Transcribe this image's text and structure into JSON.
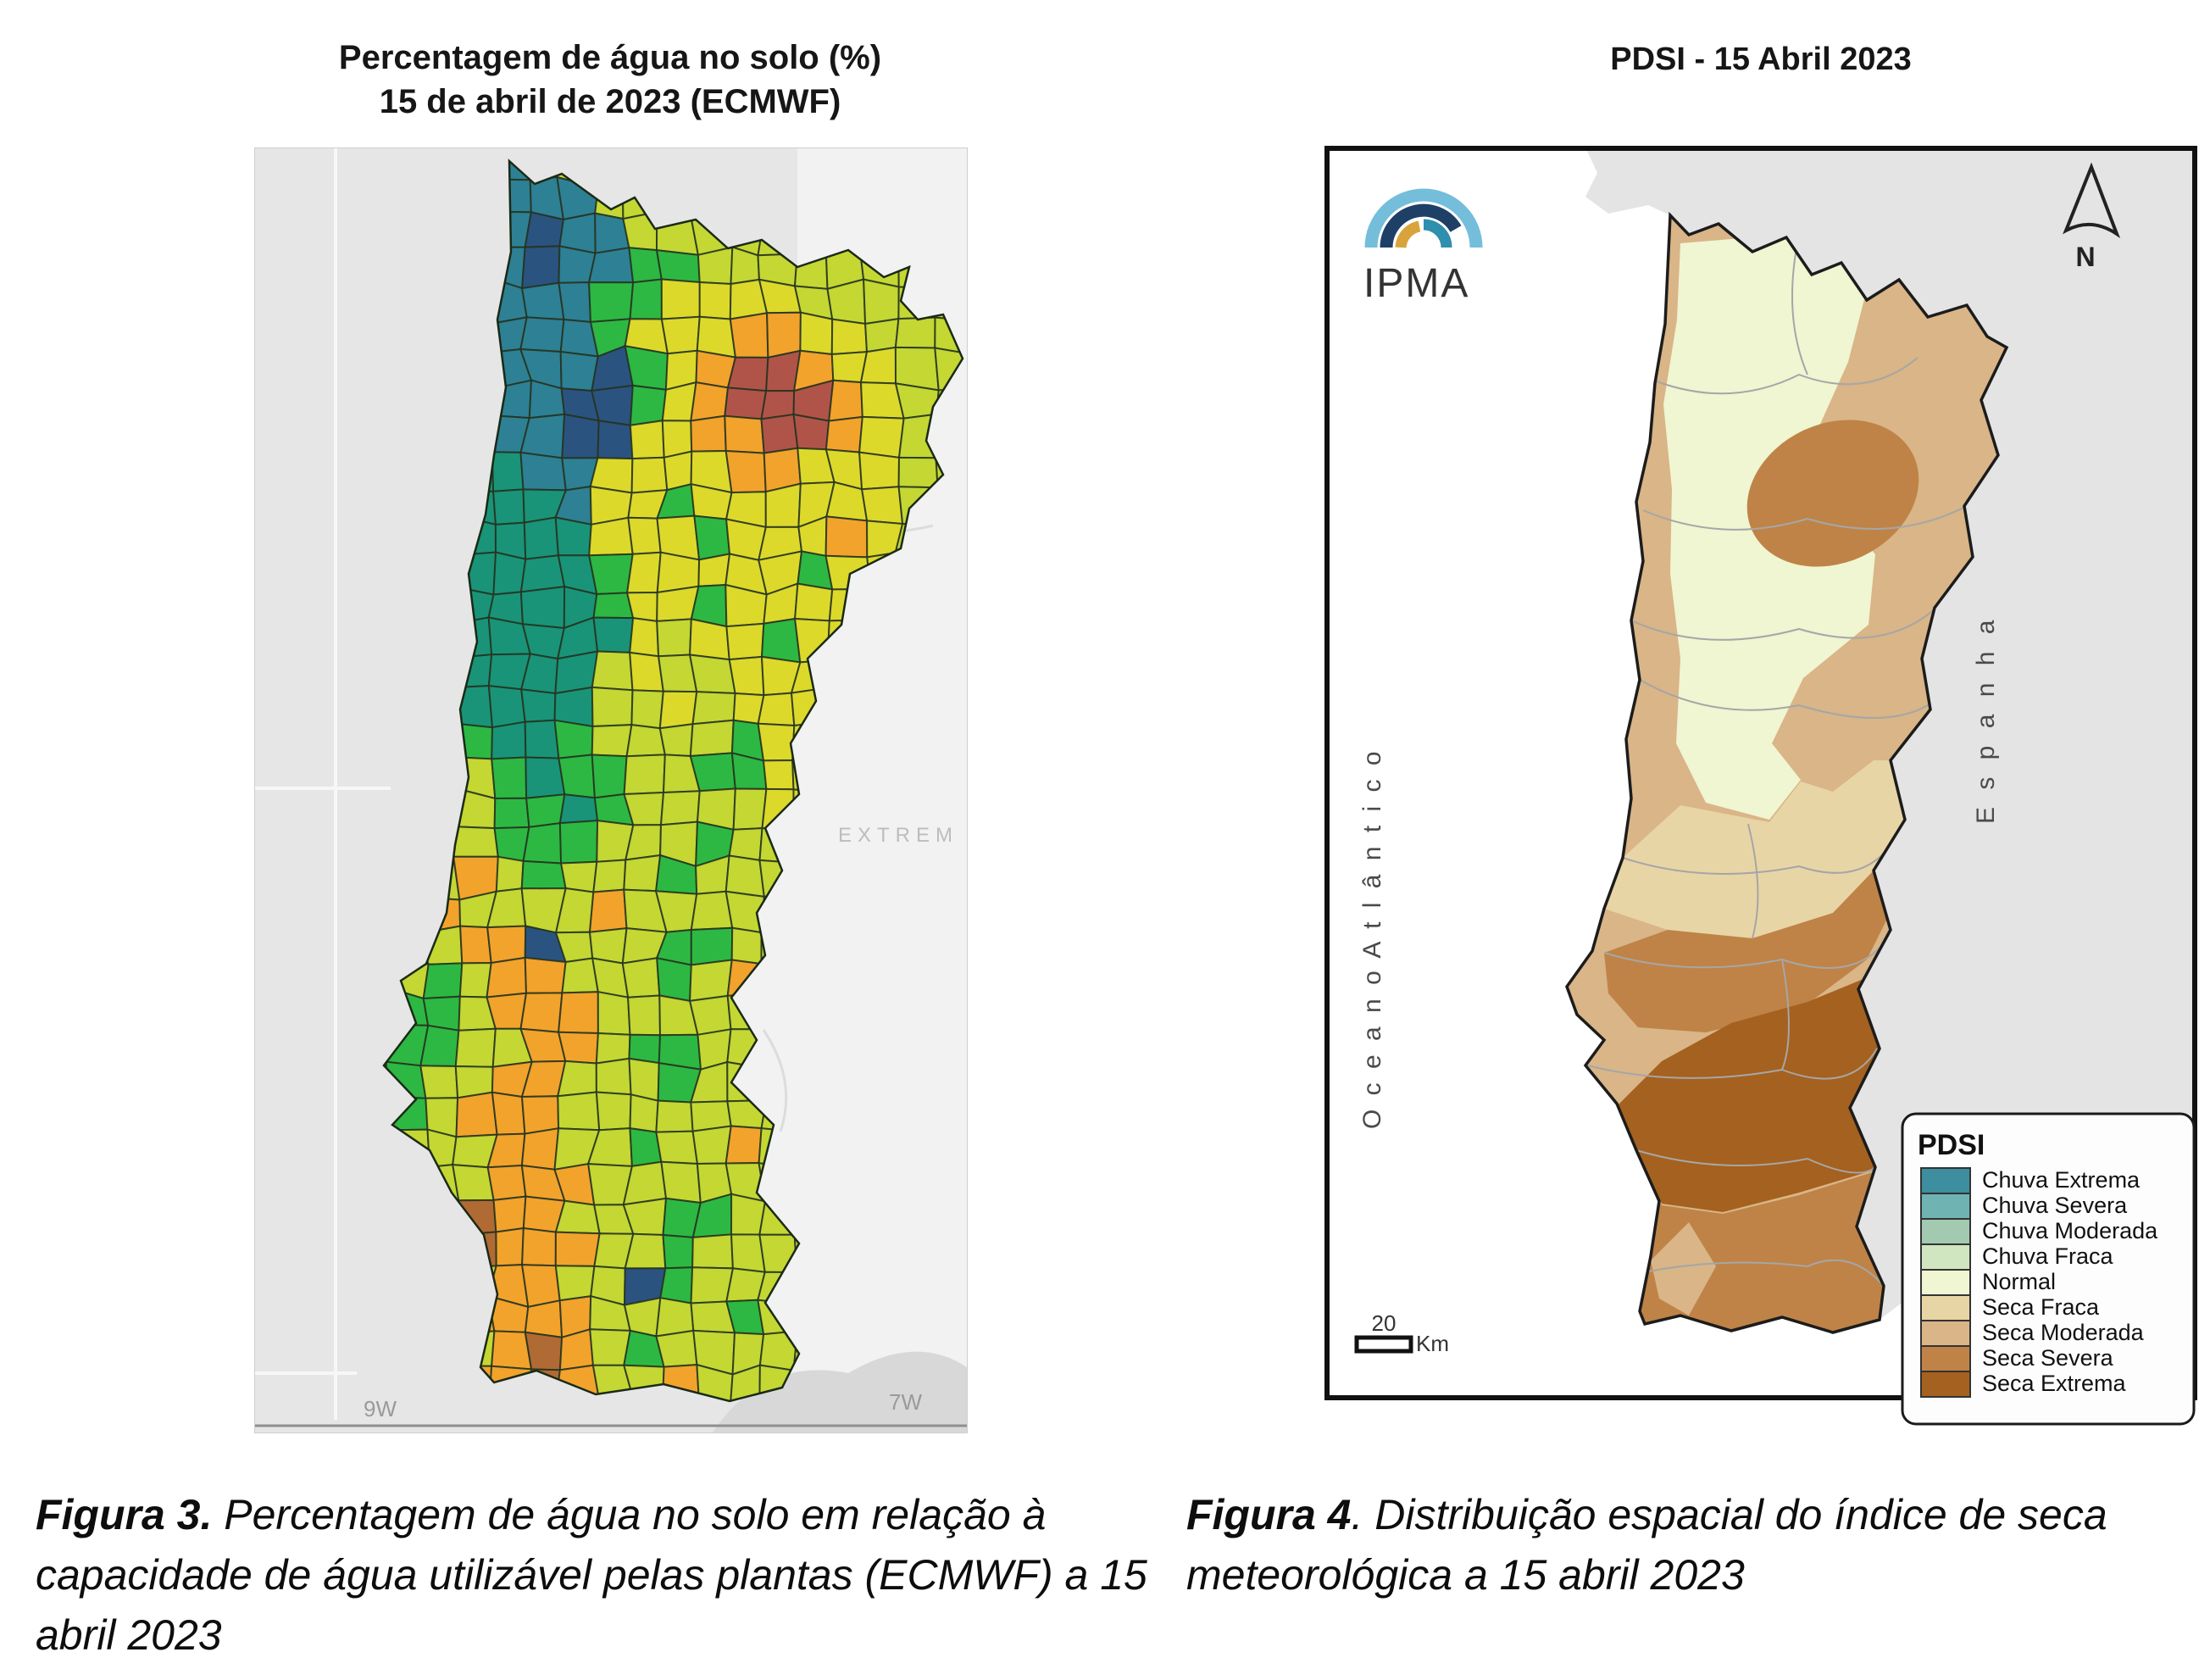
{
  "figure3": {
    "title_line1": "Percentagem de água no solo (%)",
    "title_line2": "15 de abril de 2023 (ECMWF)",
    "caption_prefix": "Figura 3.",
    "caption_body": " Percentagem de água no solo em relação à capacidade de água utilizável pelas plantas (ECMWF) a 15 abril 2023",
    "map_labels": {
      "extremadura": "EXTREM",
      "lon_left": "9W",
      "lon_right": "7W"
    },
    "palette": {
      "T": "#2e8094",
      "N": "#2b5380",
      "E": "#199478",
      "G": "#2db843",
      "Y": "#ddd92b",
      "M": "#c4d733",
      "O": "#f2a32c",
      "B": "#b0544a",
      "D": "#b06a33",
      ".": "#c4d733"
    },
    "grid": [
      ".......TT............",
      ".......TTT...........",
      "......TTNTT..........",
      "......TTNTTGG........",
      "......TTTTGGYYYY.....",
      "......TTTTGYYYOOYY...",
      "......TTTTNGYOBBOYY..",
      "......ETTNNGYOBBBOY..",
      "......ETTNNYYOOBBOY..",
      "......EETTYYYYOOYYY..",
      "......EEETYYGYYYYYY..",
      "......EEEEYYYGYYYOY..",
      "......EEEEGYYYYYGYY..",
      ".....EEEEEGYYGYYYY...",
      ".....EEEEEEYMYYGYY...",
      ".....EEEEEMYMMYYY....",
      ".....GEEEEMMYMYYY....",
      ".....MGEEGMMMMGYY....",
      ".....MMGEGGMMGGYY....",
      ".....MMGGEGMMMMYY....",
      "....MMMGGGMMMGMM.....",
      "....MMOMGMMMGMMM.....",
      "....MOMMMMOMMMMM.....",
      "....MMOONMMMGGMM.....",
      "....MGMOOMMMGMOM.....",
      "...MGGMOOOMMMMMM.....",
      "...MGGMMOOMGGMMM.....",
      "...GGMMOOMMMGMMO.....",
      "..MGGMOOOMMMMMMM.....",
      "...GMMMOOMMGMMOM.....",
      "....MMMOOOMMMMMM.....",
      "....MMDOOMMMGGM......",
      "....MDDOOOMMGMMM.....",
      "....MMMOOMMNGMMM.....",
      "....MMOOOOMMMMGM.....",
      "....MOMODOMGMMM......",
      "....MMOODOMMOM.......",
      "......MOOM..........."
    ]
  },
  "figure4": {
    "title": "PDSI - 15 Abril 2023",
    "caption_prefix": "Figura 4",
    "caption_body": ". Distribuição espacial do índice de seca meteorológica a 15 abril 2023",
    "logo_text": "IPMA",
    "north_label": "N",
    "ocean_label": "O c e a n o   A t l â n t i c o",
    "spain_label": "E s p a n h a",
    "scale_value": "20",
    "scale_unit": "Km",
    "legend_title": "PDSI",
    "legend": [
      {
        "label": "Chuva Extrema",
        "color": "#3d8e9f"
      },
      {
        "label": "Chuva Severa",
        "color": "#6fb3b3"
      },
      {
        "label": "Chuva Moderada",
        "color": "#a3c9b0"
      },
      {
        "label": "Chuva Fraca",
        "color": "#cfe6c0"
      },
      {
        "label": "Normal",
        "color": "#f0f5d2"
      },
      {
        "label": "Seca Fraca",
        "color": "#e8d5a6"
      },
      {
        "label": "Seca Moderada",
        "color": "#d9b587"
      },
      {
        "label": "Seca Severa",
        "color": "#bf8347"
      },
      {
        "label": "Seca Extrema",
        "color": "#a5611f"
      }
    ],
    "zones": {
      "normal": "#f0f5d2",
      "seca_fraca": "#e8d5a6",
      "seca_moderada": "#d9b587",
      "seca_severa": "#bf8347",
      "seca_extrema": "#a5611f",
      "spain": "#e4e4e4",
      "ocean": "#ffffff",
      "outline": "#1c1c1c"
    }
  }
}
